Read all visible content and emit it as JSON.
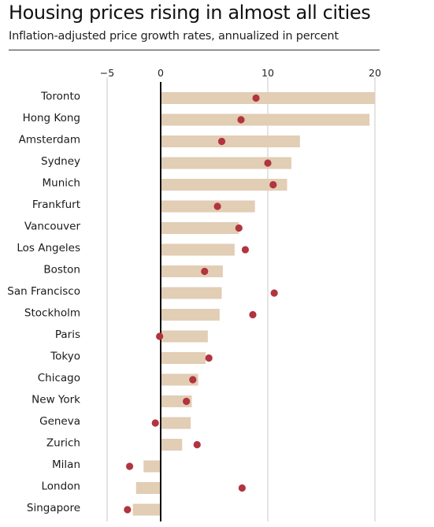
{
  "title": "Housing prices rising in almost all cities",
  "subtitle": "Inflation-adjusted price growth rates, annualized in percent",
  "colors": {
    "bar": "#e2cdb5",
    "dot": "#b1343f",
    "grid": "#c8c8c8",
    "zero": "#111111"
  },
  "chart_data": {
    "type": "bar",
    "orientation": "horizontal",
    "xlim": [
      -5,
      20
    ],
    "xticks": [
      -5,
      0,
      10,
      20
    ],
    "grid": true,
    "categories": [
      "Toronto",
      "Hong Kong",
      "Amsterdam",
      "Sydney",
      "Munich",
      "Frankfurt",
      "Vancouver",
      "Los Angeles",
      "Boston",
      "San Francisco",
      "Stockholm",
      "Paris",
      "Tokyo",
      "Chicago",
      "New York",
      "Geneva",
      "Zurich",
      "Milan",
      "London",
      "Singapore"
    ],
    "series": [
      {
        "type": "bar",
        "values": [
          20.0,
          19.5,
          13.0,
          12.2,
          11.8,
          8.8,
          7.3,
          6.9,
          5.8,
          5.7,
          5.5,
          4.4,
          4.2,
          3.5,
          2.9,
          2.8,
          2.0,
          -1.6,
          -2.3,
          -2.6
        ]
      },
      {
        "type": "point",
        "values": [
          8.9,
          7.5,
          5.7,
          10.0,
          10.5,
          5.3,
          7.3,
          7.9,
          4.1,
          10.6,
          8.6,
          -0.1,
          4.5,
          3.0,
          2.4,
          -0.5,
          3.4,
          -2.9,
          7.6,
          -3.1
        ]
      }
    ]
  }
}
